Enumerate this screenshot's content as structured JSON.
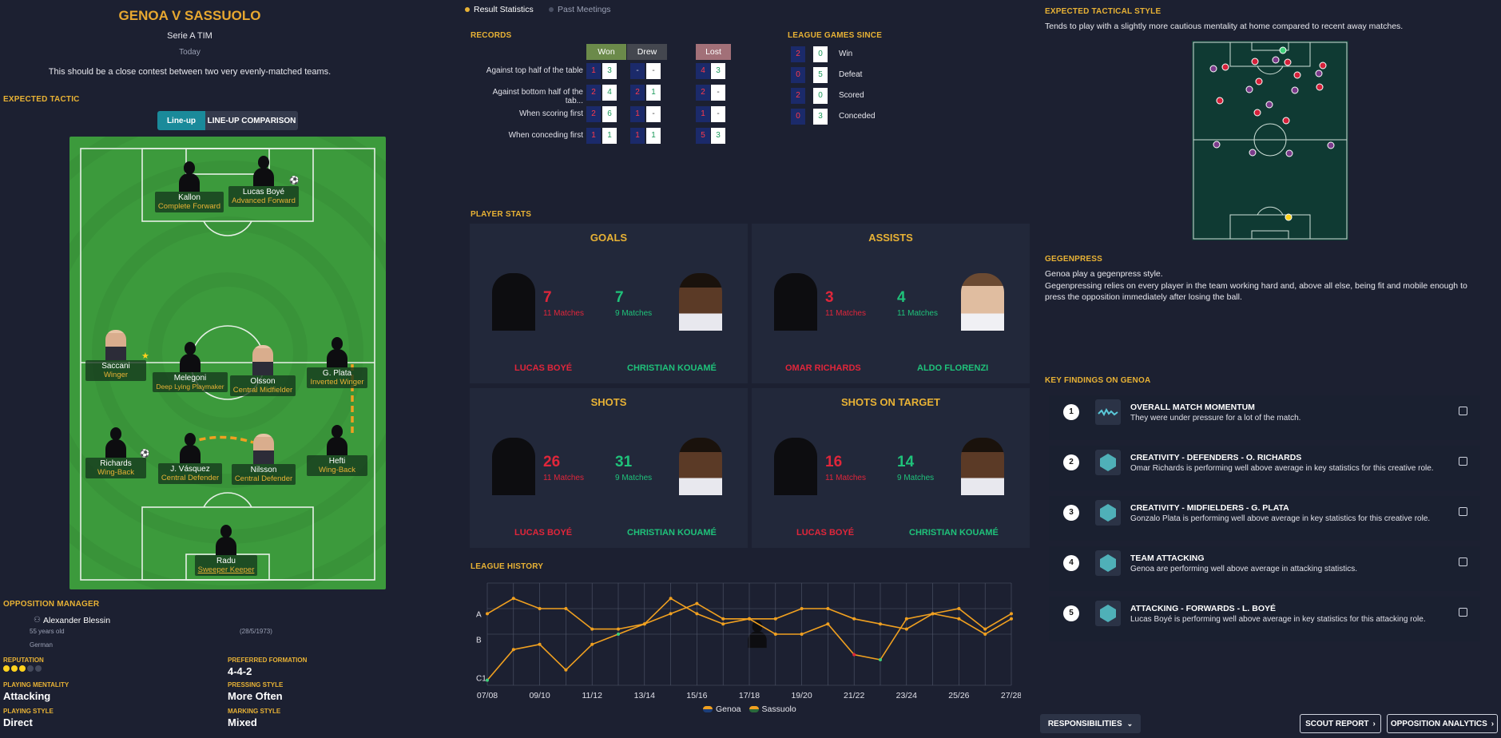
{
  "header": {
    "title": "GENOA V SASSUOLO",
    "competition": "Serie A TIM",
    "date": "Today",
    "preview": "This should be a close contest between two very evenly-matched teams."
  },
  "expected_tactic": {
    "section": "EXPECTED TACTIC",
    "toggle_lineup": "Line-up",
    "toggle_comparison": "LINE-UP COMPARISON",
    "players": [
      {
        "name": "Kallon",
        "role": "Complete Forward"
      },
      {
        "name": "Lucas Boyé",
        "role": "Advanced Forward"
      },
      {
        "name": "Saccani",
        "role": "Winger"
      },
      {
        "name": "Melegoni",
        "role": "Deep Lying Playmaker"
      },
      {
        "name": "Olsson",
        "role": "Central Midfielder"
      },
      {
        "name": "G. Plata",
        "role": "Inverted Winger"
      },
      {
        "name": "Richards",
        "role": "Wing-Back"
      },
      {
        "name": "J. Vásquez",
        "role": "Central Defender"
      },
      {
        "name": "Nilsson",
        "role": "Central Defender"
      },
      {
        "name": "Hefti",
        "role": "Wing-Back"
      },
      {
        "name": "Radu",
        "role": "Sweeper Keeper"
      }
    ]
  },
  "manager": {
    "section": "OPPOSITION MANAGER",
    "name": "Alexander Blessin",
    "age": "55 years old",
    "nationality": "German",
    "dob": "(28/5/1973)",
    "reputation_label": "REPUTATION",
    "reputation_stars": 3,
    "reputation_max": 5,
    "formation_label": "PREFERRED FORMATION",
    "formation": "4-4-2",
    "mentality_label": "PLAYING MENTALITY",
    "mentality": "Attacking",
    "pressing_label": "PRESSING STYLE",
    "pressing": "More Often",
    "playing_label": "PLAYING STYLE",
    "playing": "Direct",
    "marking_label": "MARKING STYLE",
    "marking": "Mixed"
  },
  "tabs": {
    "result_stats": "Result Statistics",
    "past_meetings": "Past Meetings"
  },
  "records": {
    "section": "RECORDS",
    "headers": [
      "Won",
      "Drew",
      "Lost"
    ],
    "rows": [
      {
        "label": "Against top half of the table",
        "values": [
          "1",
          "3",
          "-",
          "-",
          "4",
          "3"
        ]
      },
      {
        "label": "Against bottom half of the tab...",
        "values": [
          "2",
          "4",
          "2",
          "1",
          "2",
          "-"
        ]
      },
      {
        "label": "When scoring first",
        "values": [
          "2",
          "6",
          "1",
          "-",
          "1",
          "-"
        ]
      },
      {
        "label": "When conceding first",
        "values": [
          "1",
          "1",
          "1",
          "1",
          "5",
          "3"
        ]
      }
    ]
  },
  "league_since": {
    "section": "LEAGUE GAMES SINCE",
    "rows": [
      {
        "label": "Win",
        "a": "2",
        "b": "0"
      },
      {
        "label": "Defeat",
        "a": "0",
        "b": "5"
      },
      {
        "label": "Scored",
        "a": "2",
        "b": "0"
      },
      {
        "label": "Conceded",
        "a": "0",
        "b": "3"
      }
    ]
  },
  "player_stats": {
    "section": "PLAYER STATS",
    "panels": [
      {
        "title": "GOALS",
        "left_value": "7",
        "left_matches": "11 Matches",
        "right_value": "7",
        "right_matches": "9 Matches",
        "left_player": "LUCAS BOYÉ",
        "right_player": "CHRISTIAN KOUAMÉ"
      },
      {
        "title": "ASSISTS",
        "left_value": "3",
        "left_matches": "11 Matches",
        "right_value": "4",
        "right_matches": "11 Matches",
        "left_player": "OMAR RICHARDS",
        "right_player": "ALDO FLORENZI"
      },
      {
        "title": "SHOTS",
        "left_value": "26",
        "left_matches": "11 Matches",
        "right_value": "31",
        "right_matches": "9 Matches",
        "left_player": "LUCAS BOYÉ",
        "right_player": "CHRISTIAN KOUAMÉ"
      },
      {
        "title": "SHOTS ON TARGET",
        "left_value": "16",
        "left_matches": "11 Matches",
        "right_value": "14",
        "right_matches": "9 Matches",
        "left_player": "LUCAS BOYÉ",
        "right_player": "CHRISTIAN KOUAMÉ"
      }
    ]
  },
  "league_history": {
    "section": "LEAGUE HISTORY",
    "legend_genoa": "Genoa",
    "legend_sassuolo": "Sassuolo"
  },
  "chart_data": {
    "type": "line",
    "title": "",
    "x": [
      "07/08",
      "08/09",
      "09/10",
      "10/11",
      "11/12",
      "12/13",
      "13/14",
      "14/15",
      "15/16",
      "16/17",
      "17/18",
      "18/19",
      "19/20",
      "20/21",
      "21/22",
      "22/23",
      "23/24",
      "24/25",
      "25/26",
      "26/27",
      "27/28"
    ],
    "x_tick_labels": [
      "07/08",
      "09/10",
      "11/12",
      "13/14",
      "15/16",
      "17/18",
      "19/20",
      "21/22",
      "23/24",
      "25/26",
      "27/28"
    ],
    "y_tick_labels": [
      "A",
      "B",
      "C1"
    ],
    "ylim": [
      0,
      20
    ],
    "series": [
      {
        "name": "Genoa",
        "color": "#f0a020",
        "values": [
          1,
          7,
          8,
          3,
          8,
          10,
          12,
          14,
          16,
          13,
          13,
          10,
          10,
          12,
          6,
          5,
          13,
          14,
          13,
          10,
          13
        ]
      },
      {
        "name": "Sassuolo",
        "color": "#f0a020",
        "values": [
          14,
          17,
          15,
          15,
          11,
          11,
          12,
          17,
          14,
          12,
          13,
          13,
          15,
          15,
          13,
          12,
          11,
          14,
          15,
          11,
          14
        ]
      }
    ]
  },
  "tactical_style": {
    "section": "EXPECTED TACTICAL STYLE",
    "text": "Tends to play with a slightly more cautious mentality at home compared to recent away matches."
  },
  "gegenpress": {
    "section": "GEGENPRESS",
    "line1": "Genoa play a gegenpress style.",
    "line2": "Gegenpressing relies on every player in the team working hard and, above all else, being fit and mobile enough to press the opposition immediately after losing the ball."
  },
  "key_findings": {
    "section": "KEY FINDINGS ON GENOA",
    "items": [
      {
        "num": "1",
        "title": "OVERALL MATCH MOMENTUM",
        "desc": "They were under pressure for a lot of the match."
      },
      {
        "num": "2",
        "title": "CREATIVITY - DEFENDERS - O. RICHARDS",
        "desc": "Omar Richards is performing well above average in key statistics for this creative role."
      },
      {
        "num": "3",
        "title": "CREATIVITY - MIDFIELDERS - G. PLATA",
        "desc": "Gonzalo Plata is performing well above average in key statistics for this creative role."
      },
      {
        "num": "4",
        "title": "TEAM ATTACKING",
        "desc": "Genoa are performing well above average in attacking statistics."
      },
      {
        "num": "5",
        "title": "ATTACKING - FORWARDS - L. BOYÉ",
        "desc": "Lucas Boyé is performing well above average in key statistics for this attacking role."
      }
    ]
  },
  "footer": {
    "responsibilities": "RESPONSIBILITIES",
    "scout_report": "SCOUT REPORT",
    "opposition_analytics": "OPPOSITION ANALYTICS"
  }
}
